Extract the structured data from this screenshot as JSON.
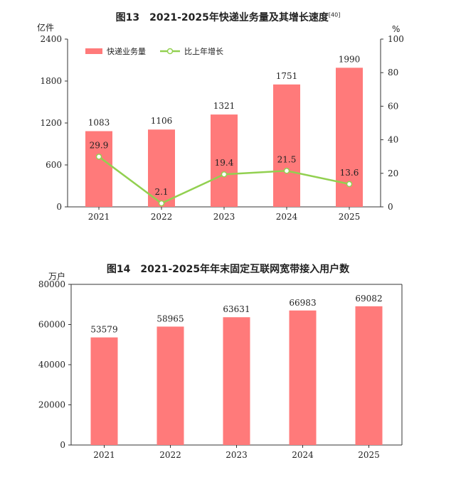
{
  "chart_data": [
    {
      "id": "fig13",
      "type": "bar",
      "title": "图13　2021-2025年快递业务量及其增长速度",
      "title_note": "[40]",
      "ylabel": "亿件",
      "y2label": "%",
      "categories": [
        "2021",
        "2022",
        "2023",
        "2024",
        "2025"
      ],
      "ylim": [
        0,
        2400
      ],
      "yticks": [
        "0",
        "600",
        "1200",
        "1800",
        "2400"
      ],
      "y2lim": [
        0,
        100
      ],
      "y2ticks": [
        "0",
        "20",
        "40",
        "60",
        "80",
        "100"
      ],
      "legend_position": "top-left",
      "grid": false,
      "series": [
        {
          "name": "快递业务量",
          "type": "bar",
          "color": "#ff7a7a",
          "values": [
            1083,
            1106,
            1321,
            1751,
            1990
          ],
          "labels": [
            "1083",
            "1106",
            "1321",
            "1751",
            "1990"
          ]
        },
        {
          "name": "比上年增长",
          "type": "line",
          "axis": "right",
          "color": "#92d050",
          "values": [
            29.9,
            2.1,
            19.4,
            21.5,
            13.6
          ],
          "labels": [
            "29.9",
            "2.1",
            "19.4",
            "21.5",
            "13.6"
          ]
        }
      ]
    },
    {
      "id": "fig14",
      "type": "bar",
      "title": "图14　2021-2025年年末固定互联网宽带接入用户数",
      "ylabel": "万户",
      "categories": [
        "2021",
        "2022",
        "2023",
        "2024",
        "2025"
      ],
      "ylim": [
        0,
        80000
      ],
      "yticks": [
        "0",
        "20000",
        "40000",
        "60000",
        "80000"
      ],
      "grid": false,
      "series": [
        {
          "color": "#ff7a7a",
          "values": [
            53579,
            58965,
            63631,
            66983,
            69082
          ],
          "labels": [
            "53579",
            "58965",
            "63631",
            "66983",
            "69082"
          ]
        }
      ]
    }
  ]
}
